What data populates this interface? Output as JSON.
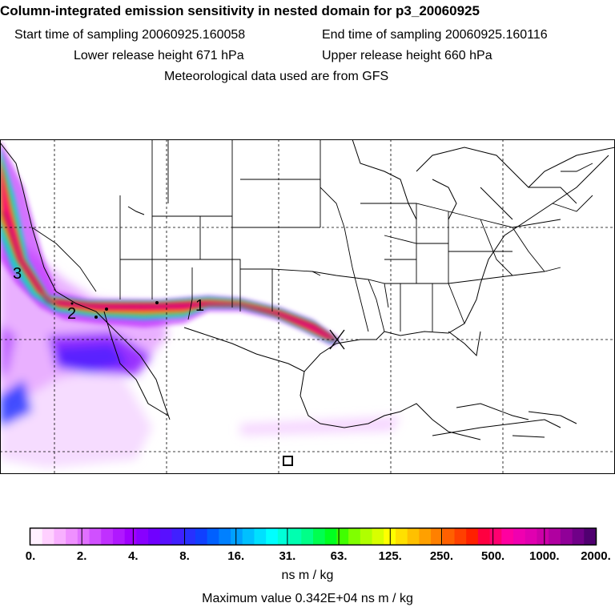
{
  "header": {
    "title": "Column-integrated emission sensitivity in nested domain for p3_20060925",
    "start_time": "Start time of sampling 20060925.160058",
    "end_time": "End time of sampling 20060925.160116",
    "lower_release": "Lower release height  671 hPa",
    "upper_release": "Upper release height  660 hPa",
    "met_data": "Meteorological data used are from GFS"
  },
  "map": {
    "plume_labels": [
      "1",
      "2",
      "3"
    ],
    "release_marker": "receptor-x-marker",
    "colors": {
      "frame": "#000000",
      "plume_core": "#ff0080",
      "plume_outer": "#b000ff"
    }
  },
  "colorbar": {
    "tick_labels": [
      "0.",
      "2.",
      "4.",
      "8.",
      "16.",
      "31.",
      "63.",
      "125.",
      "250.",
      "500.",
      "1000.",
      "2000."
    ],
    "colors": [
      "#fff0ff",
      "#ffd0ff",
      "#f8b0ff",
      "#ef90ff",
      "#e070ff",
      "#d050ff",
      "#c030ff",
      "#b018ff",
      "#a000ff",
      "#8800ff",
      "#7000ff",
      "#5810ff",
      "#4020ff",
      "#2830ff",
      "#1040ff",
      "#0060ff",
      "#0080ff",
      "#00a0ff",
      "#00c0ff",
      "#00e0ff",
      "#00ffff",
      "#00ffd8",
      "#00ffb0",
      "#00ff88",
      "#00ff50",
      "#00ff20",
      "#40ff00",
      "#80ff00",
      "#b0ff00",
      "#d8ff00",
      "#ffff00",
      "#ffe000",
      "#ffc000",
      "#ffa000",
      "#ff8000",
      "#ff6000",
      "#ff4000",
      "#ff2000",
      "#ff0040",
      "#ff0070",
      "#ff00a0",
      "#f000b0",
      "#e000b0",
      "#cc00a8",
      "#b000a0",
      "#900098",
      "#700088",
      "#500070"
    ],
    "unit": "ns m / kg",
    "max_value": "Maximum value  0.342E+04 ns m / kg"
  }
}
